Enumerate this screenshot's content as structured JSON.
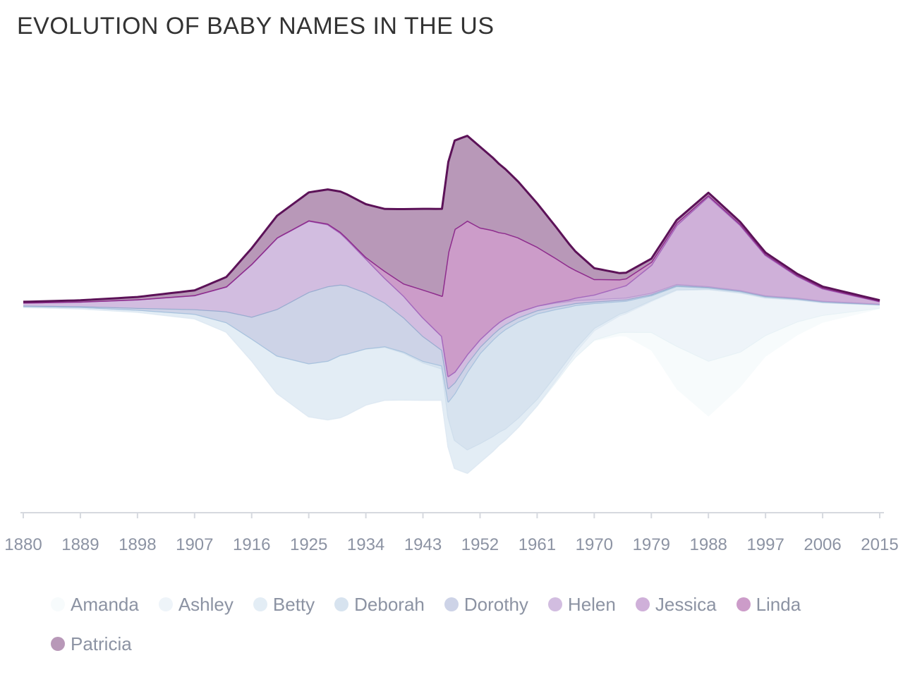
{
  "chart_data": {
    "type": "area",
    "subtype": "streamgraph",
    "title": "EVOLUTION OF BABY NAMES IN THE US",
    "x_ticks": [
      "1880",
      "1889",
      "1898",
      "1907",
      "1916",
      "1925",
      "1934",
      "1943",
      "1952",
      "1961",
      "1970",
      "1979",
      "1988",
      "1997",
      "2006",
      "2015"
    ],
    "xlim": [
      1880,
      2015
    ],
    "legend_placement": "bottom",
    "series": [
      {
        "name": "Amanda",
        "color": "#f7fbfc",
        "line_color": "#e8f2f6",
        "points": [
          [
            1880,
            0.2
          ],
          [
            1916,
            0.2
          ],
          [
            1925,
            0.2
          ],
          [
            1934,
            0.2
          ],
          [
            1943,
            0.3
          ],
          [
            1952,
            0.3
          ],
          [
            1961,
            0.3
          ],
          [
            1970,
            1.0
          ],
          [
            1975,
            3.0
          ],
          [
            1979,
            12.0
          ],
          [
            1983,
            28.0
          ],
          [
            1988,
            36.0
          ],
          [
            1993,
            23.0
          ],
          [
            1997,
            14.0
          ],
          [
            2006,
            5.0
          ],
          [
            2015,
            0.8
          ]
        ]
      },
      {
        "name": "Ashley",
        "color": "#eef4f9",
        "line_color": "#dfe9f3",
        "points": [
          [
            1880,
            0.2
          ],
          [
            1916,
            0.2
          ],
          [
            1934,
            0.2
          ],
          [
            1952,
            0.2
          ],
          [
            1961,
            0.3
          ],
          [
            1966,
            2.0
          ],
          [
            1970,
            6.0
          ],
          [
            1975,
            12.0
          ],
          [
            1979,
            20.0
          ],
          [
            1983,
            36.0
          ],
          [
            1988,
            46.0
          ],
          [
            1993,
            38.0
          ],
          [
            1997,
            24.0
          ],
          [
            2002,
            14.0
          ],
          [
            2006,
            8.0
          ],
          [
            2015,
            2.0
          ]
        ]
      },
      {
        "name": "Betty",
        "color": "#e3edf5",
        "line_color": "#cfdeec",
        "points": [
          [
            1880,
            0.5
          ],
          [
            1898,
            1.2
          ],
          [
            1907,
            2.8
          ],
          [
            1912,
            6.0
          ],
          [
            1916,
            14.0
          ],
          [
            1920,
            24.0
          ],
          [
            1925,
            34.0
          ],
          [
            1930,
            40.0
          ],
          [
            1934,
            36.0
          ],
          [
            1937,
            34.0
          ],
          [
            1940,
            30.0
          ],
          [
            1943,
            24.0
          ],
          [
            1946,
            20.0
          ],
          [
            1948,
            18.0
          ],
          [
            1952,
            12.0
          ],
          [
            1956,
            7.0
          ],
          [
            1961,
            4.0
          ],
          [
            1970,
            1.5
          ],
          [
            1979,
            0.6
          ],
          [
            1988,
            0.3
          ],
          [
            2015,
            0.1
          ]
        ]
      },
      {
        "name": "Deborah",
        "color": "#d7e3ef",
        "line_color": "#a9c3de",
        "points": [
          [
            1880,
            0.0
          ],
          [
            1934,
            0.1
          ],
          [
            1943,
            1.0
          ],
          [
            1946,
            2.0
          ],
          [
            1947,
            10.0
          ],
          [
            1948,
            30.0
          ],
          [
            1950,
            50.0
          ],
          [
            1952,
            58.0
          ],
          [
            1954,
            62.0
          ],
          [
            1956,
            64.0
          ],
          [
            1958,
            62.0
          ],
          [
            1961,
            55.0
          ],
          [
            1964,
            42.0
          ],
          [
            1967,
            28.0
          ],
          [
            1970,
            16.0
          ],
          [
            1974,
            8.0
          ],
          [
            1979,
            3.0
          ],
          [
            1988,
            0.8
          ],
          [
            2015,
            0.1
          ]
        ]
      },
      {
        "name": "Dorothy",
        "color": "#cdd3e7",
        "line_color": "#9aacd0",
        "points": [
          [
            1880,
            0.3
          ],
          [
            1889,
            0.5
          ],
          [
            1898,
            1.2
          ],
          [
            1907,
            3.0
          ],
          [
            1912,
            7.0
          ],
          [
            1916,
            14.0
          ],
          [
            1920,
            30.0
          ],
          [
            1925,
            46.0
          ],
          [
            1928,
            48.0
          ],
          [
            1931,
            44.0
          ],
          [
            1934,
            36.0
          ],
          [
            1937,
            28.0
          ],
          [
            1940,
            22.0
          ],
          [
            1943,
            16.0
          ],
          [
            1946,
            10.0
          ],
          [
            1948,
            7.0
          ],
          [
            1952,
            4.0
          ],
          [
            1961,
            2.0
          ],
          [
            1970,
            1.0
          ],
          [
            1988,
            0.4
          ],
          [
            2015,
            0.2
          ]
        ]
      },
      {
        "name": "Helen",
        "color": "#d2bde0",
        "line_color": "#b99ad0",
        "points": [
          [
            1880,
            2.0
          ],
          [
            1889,
            3.0
          ],
          [
            1898,
            5.5
          ],
          [
            1907,
            9.0
          ],
          [
            1912,
            16.0
          ],
          [
            1916,
            34.0
          ],
          [
            1920,
            46.0
          ],
          [
            1925,
            46.0
          ],
          [
            1928,
            40.0
          ],
          [
            1931,
            30.0
          ],
          [
            1934,
            22.0
          ],
          [
            1937,
            16.0
          ],
          [
            1940,
            14.0
          ],
          [
            1943,
            12.0
          ],
          [
            1946,
            9.0
          ],
          [
            1948,
            7.0
          ],
          [
            1952,
            5.0
          ],
          [
            1961,
            3.0
          ],
          [
            1970,
            1.5
          ],
          [
            1988,
            0.5
          ],
          [
            2015,
            0.3
          ]
        ]
      },
      {
        "name": "Jessica",
        "color": "#cfb0d9",
        "line_color": "#a569bd",
        "points": [
          [
            1880,
            0.0
          ],
          [
            1961,
            0.0
          ],
          [
            1966,
            1.0
          ],
          [
            1970,
            3.0
          ],
          [
            1975,
            8.0
          ],
          [
            1979,
            18.0
          ],
          [
            1983,
            38.0
          ],
          [
            1988,
            58.0
          ],
          [
            1993,
            42.0
          ],
          [
            1997,
            26.0
          ],
          [
            2002,
            14.0
          ],
          [
            2006,
            8.0
          ],
          [
            2015,
            1.5
          ]
        ]
      },
      {
        "name": "Linda",
        "color": "#cc9cc9",
        "line_color": "#8e2c8d",
        "points": [
          [
            1880,
            0.0
          ],
          [
            1925,
            0.2
          ],
          [
            1934,
            1.0
          ],
          [
            1940,
            8.0
          ],
          [
            1943,
            18.0
          ],
          [
            1946,
            26.0
          ],
          [
            1947,
            80.0
          ],
          [
            1948,
            92.0
          ],
          [
            1950,
            86.0
          ],
          [
            1952,
            72.0
          ],
          [
            1955,
            58.0
          ],
          [
            1958,
            48.0
          ],
          [
            1961,
            38.0
          ],
          [
            1964,
            28.0
          ],
          [
            1967,
            18.0
          ],
          [
            1970,
            10.0
          ],
          [
            1974,
            5.0
          ],
          [
            1979,
            2.0
          ],
          [
            1988,
            0.8
          ],
          [
            2015,
            0.2
          ]
        ]
      },
      {
        "name": "Patricia",
        "color": "#b898b8",
        "line_color": "#5c1258",
        "points": [
          [
            1880,
            0.5
          ],
          [
            1889,
            0.8
          ],
          [
            1898,
            1.5
          ],
          [
            1907,
            3.0
          ],
          [
            1912,
            6.0
          ],
          [
            1916,
            10.0
          ],
          [
            1920,
            14.0
          ],
          [
            1925,
            18.0
          ],
          [
            1928,
            22.0
          ],
          [
            1931,
            28.0
          ],
          [
            1934,
            34.0
          ],
          [
            1937,
            40.0
          ],
          [
            1940,
            48.0
          ],
          [
            1943,
            52.0
          ],
          [
            1946,
            56.0
          ],
          [
            1947,
            58.0
          ],
          [
            1949,
            56.0
          ],
          [
            1952,
            52.0
          ],
          [
            1955,
            44.0
          ],
          [
            1958,
            36.0
          ],
          [
            1961,
            28.0
          ],
          [
            1964,
            20.0
          ],
          [
            1967,
            12.0
          ],
          [
            1970,
            7.0
          ],
          [
            1974,
            4.0
          ],
          [
            1979,
            2.0
          ],
          [
            1988,
            1.5
          ],
          [
            1997,
            1.0
          ],
          [
            2015,
            0.5
          ]
        ]
      }
    ]
  }
}
